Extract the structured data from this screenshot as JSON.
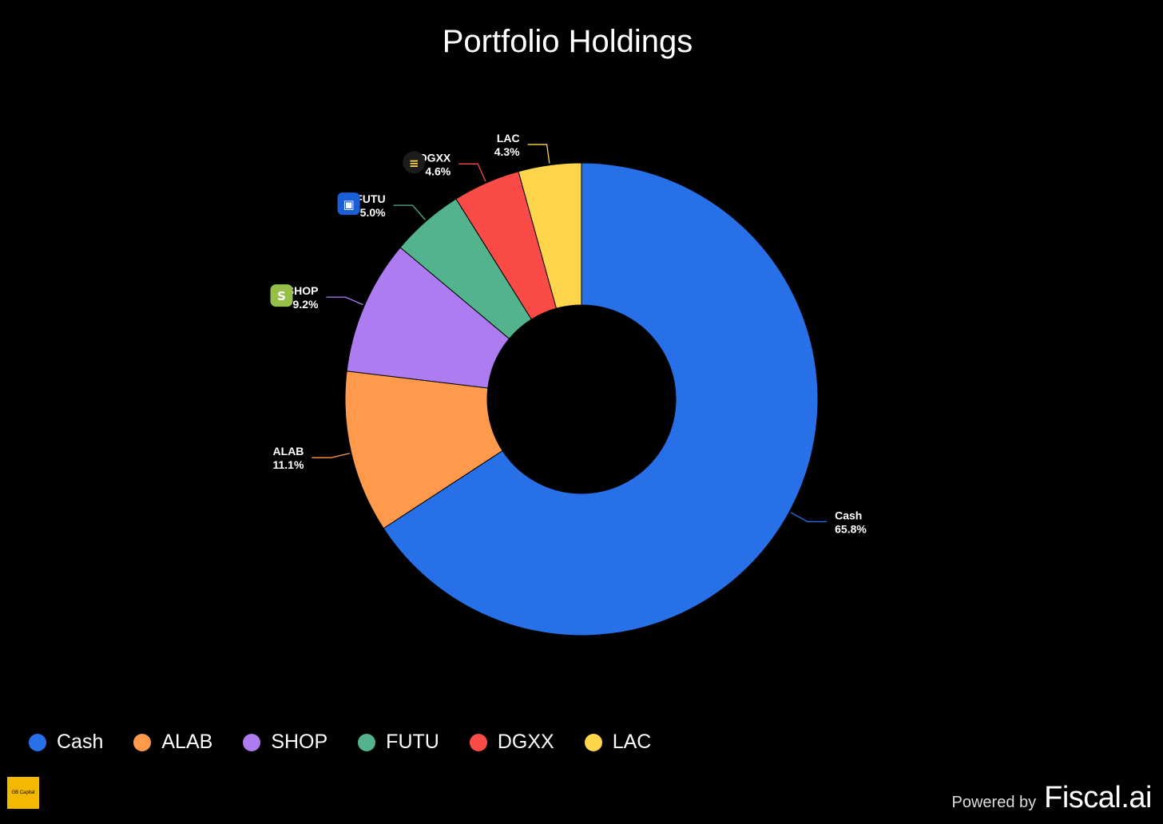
{
  "chart_data": {
    "type": "pie",
    "title": "Portfolio Holdings",
    "donut": true,
    "slices": [
      {
        "label": "Cash",
        "value": 65.8,
        "value_label": "65.8%",
        "color": "#2770e8",
        "icon": null
      },
      {
        "label": "ALAB",
        "value": 11.1,
        "value_label": "11.1%",
        "color": "#ff9a4c",
        "icon": null
      },
      {
        "label": "SHOP",
        "value": 9.2,
        "value_label": "9.2%",
        "color": "#ad7cf0",
        "icon": "shopify-icon"
      },
      {
        "label": "FUTU",
        "value": 5.0,
        "value_label": "5.0%",
        "color": "#52b38d",
        "icon": "futu-icon"
      },
      {
        "label": "DGXX",
        "value": 4.6,
        "value_label": "4.6%",
        "color": "#fa4b46",
        "icon": "dgxx-icon"
      },
      {
        "label": "LAC",
        "value": 4.3,
        "value_label": "4.3%",
        "color": "#ffd54c",
        "icon": null
      }
    ],
    "legend_position": "bottom-left"
  },
  "branding": {
    "badge_text": "GB Capital",
    "powered_label": "Powered by",
    "powered_brand": "Fiscal.ai"
  }
}
